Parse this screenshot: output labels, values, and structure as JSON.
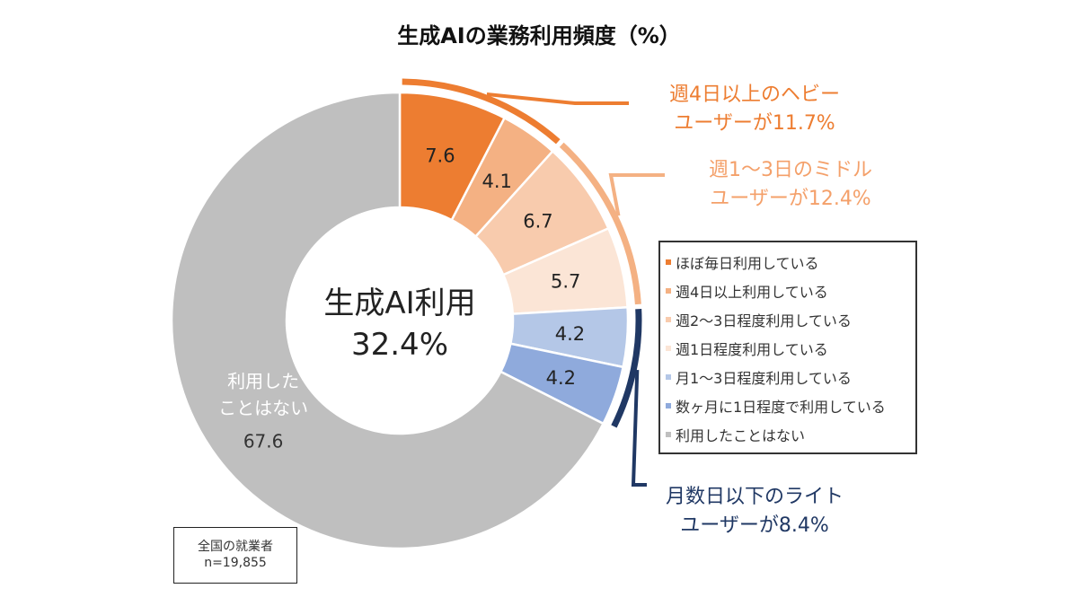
{
  "chart_data": {
    "type": "pie",
    "title": "生成AIの業務利用頻度（%）",
    "center_label": {
      "line1": "生成AI利用",
      "line2": "32.4%"
    },
    "slices": [
      {
        "label": "ほぼ毎日利用している",
        "value": 7.6,
        "display": "7.6",
        "color": "#ED7D31"
      },
      {
        "label": "週4日以上利用している",
        "value": 4.1,
        "display": "4.1",
        "color": "#F4B183"
      },
      {
        "label": "週2～3日程度利用している",
        "value": 6.7,
        "display": "6.7",
        "color": "#F8CBAD"
      },
      {
        "label": "週1日程度利用している",
        "value": 5.7,
        "display": "5.7",
        "color": "#FBE5D6"
      },
      {
        "label": "月1～3日程度利用している",
        "value": 4.2,
        "display": "4.2",
        "color": "#B4C7E7"
      },
      {
        "label": "数ヶ月に1日程度で利用している",
        "value": 4.2,
        "display": "4.2",
        "color": "#8FAADC"
      },
      {
        "label": "利用したことはない",
        "value": 67.6,
        "display": "67.6",
        "display_prefix": [
          "利用した",
          "ことはない"
        ],
        "color": "#BFBFBF"
      }
    ],
    "groups": [
      {
        "line1": "週4日以上のヘビー",
        "line2": "ユーザーが11.7%",
        "from": 0,
        "to": 2,
        "color": "#ED7D31"
      },
      {
        "line1": "週1～3日のミドル",
        "line2": "ユーザーが12.4%",
        "from": 2,
        "to": 4,
        "color": "#F4B183"
      },
      {
        "line1": "月数日以下のライト",
        "line2": "ユーザーが8.4%",
        "from": 4,
        "to": 6,
        "color": "#203864"
      }
    ],
    "legend_placement": "right"
  },
  "note": {
    "line1": "全国の就業者",
    "line2": "n=19,855"
  }
}
